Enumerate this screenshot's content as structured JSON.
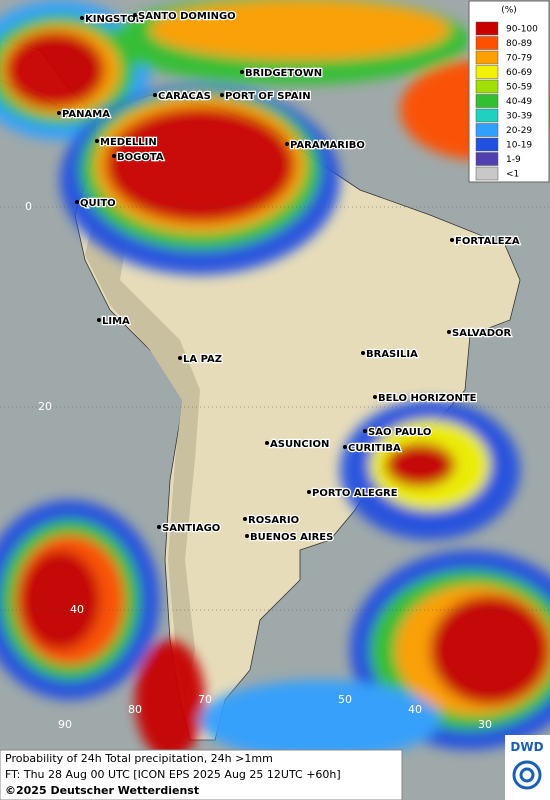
{
  "map": {
    "cities": [
      "KINGSTON",
      "SANTO DOMINGO",
      "BRIDGETOWN",
      "PANAMA",
      "CARACAS",
      "PORT OF SPAIN",
      "MEDELLIN",
      "BOGOTA",
      "PARAMARIBO",
      "QUITO",
      "FORTALEZA",
      "LIMA",
      "SALVADOR",
      "BRASILIA",
      "LA PAZ",
      "BELO HORIZONTE",
      "SAO PAULO",
      "ASUNCION",
      "CURITIBA",
      "PORTO ALEGRE",
      "SANTIAGO",
      "ROSARIO",
      "BUENOS AIRES"
    ],
    "lat_labels": [
      0,
      20,
      40
    ],
    "lon_labels": [
      90,
      80,
      70,
      50,
      40,
      30
    ]
  },
  "legend": {
    "title": "(%)",
    "items": [
      {
        "label": "90-100",
        "color": "#c80000"
      },
      {
        "label": "80-89",
        "color": "#ff5000"
      },
      {
        "label": "70-79",
        "color": "#ffa000"
      },
      {
        "label": "60-69",
        "color": "#f0f000"
      },
      {
        "label": "50-59",
        "color": "#a0e000"
      },
      {
        "label": "40-49",
        "color": "#30c030"
      },
      {
        "label": "30-39",
        "color": "#20d0c0"
      },
      {
        "label": "20-29",
        "color": "#30a0ff"
      },
      {
        "label": "10-19",
        "color": "#2050e0"
      },
      {
        "label": "1-9",
        "color": "#5040b0"
      },
      {
        "label": "<1",
        "color": "#c8c8c8"
      }
    ]
  },
  "footer": {
    "line1": "Probability of 24h Total precipitation, 24h >1mm",
    "line2": "FT: Thu 28 Aug 00 UTC [ICON EPS 2025 Aug 25 12UTC +60h]",
    "line3": "©2025 Deutscher Wetterdienst"
  },
  "logo": "DWD"
}
